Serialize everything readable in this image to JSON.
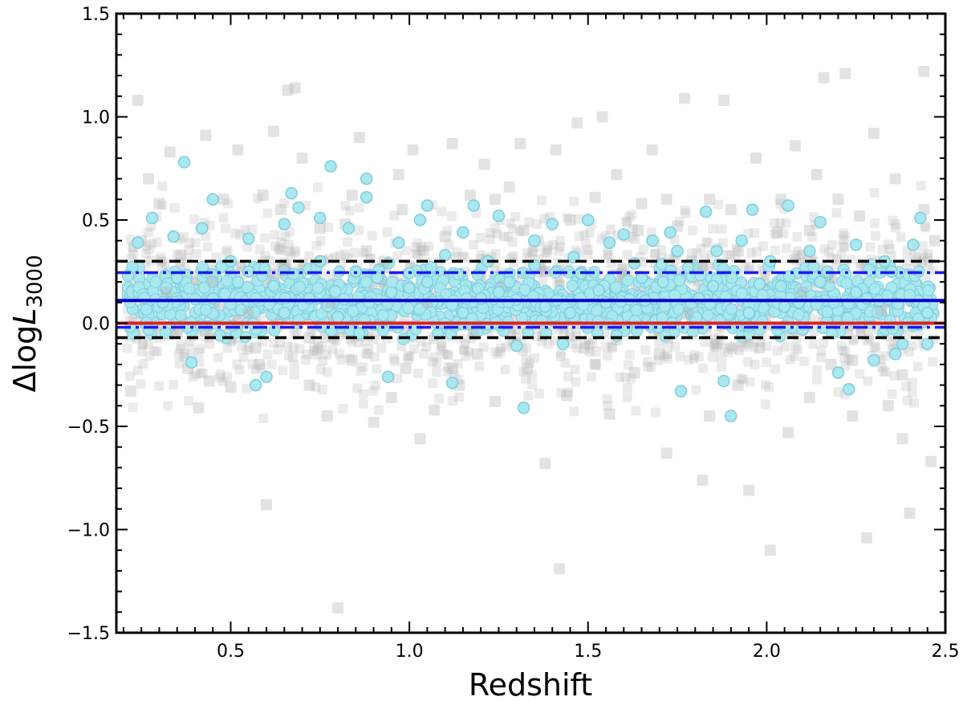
{
  "chart_data": {
    "type": "scatter",
    "xlabel": "Redshift",
    "ylabel_prefix": "Δlog",
    "ylabel_var": "L",
    "ylabel_sub": "3000",
    "xlim": [
      0.18,
      2.5
    ],
    "ylim": [
      -1.5,
      1.5
    ],
    "x_ticks": [
      0.5,
      1.0,
      1.5,
      2.0,
      2.5
    ],
    "x_tick_labels": [
      "0.5",
      "1.0",
      "1.5",
      "2.0",
      "2.5"
    ],
    "y_ticks": [
      -1.5,
      -1.0,
      -0.5,
      0.0,
      0.5,
      1.0,
      1.5
    ],
    "y_tick_labels": [
      "−1.5",
      "−1.0",
      "−0.5",
      "0.0",
      "0.5",
      "1.0",
      "1.5"
    ],
    "grid": false,
    "legend": "none",
    "series": [
      {
        "marker": "square",
        "color": "#b0b0b0",
        "opacity": 0.35,
        "points": [
          [
            0.22,
            -0.33
          ],
          [
            0.24,
            1.08
          ],
          [
            0.27,
            0.7
          ],
          [
            0.3,
            0.58
          ],
          [
            0.33,
            0.83
          ],
          [
            0.36,
            0.33
          ],
          [
            0.38,
            -0.22
          ],
          [
            0.41,
            -0.41
          ],
          [
            0.43,
            0.91
          ],
          [
            0.45,
            0.2
          ],
          [
            0.48,
            0.6
          ],
          [
            0.5,
            -0.31
          ],
          [
            0.52,
            0.84
          ],
          [
            0.55,
            0.05
          ],
          [
            0.57,
            -0.12
          ],
          [
            0.59,
            0.62
          ],
          [
            0.6,
            -0.88
          ],
          [
            0.62,
            0.93
          ],
          [
            0.65,
            0.28
          ],
          [
            0.66,
            1.13
          ],
          [
            0.68,
            1.14
          ],
          [
            0.7,
            0.8
          ],
          [
            0.72,
            -0.07
          ],
          [
            0.75,
            0.46
          ],
          [
            0.77,
            -0.45
          ],
          [
            0.8,
            -1.38
          ],
          [
            0.82,
            0.48
          ],
          [
            0.84,
            -0.18
          ],
          [
            0.86,
            0.9
          ],
          [
            0.88,
            0.35
          ],
          [
            0.9,
            -0.48
          ],
          [
            0.93,
            0.3
          ],
          [
            0.95,
            -0.36
          ],
          [
            0.97,
            0.72
          ],
          [
            0.99,
            -0.22
          ],
          [
            1.01,
            0.84
          ],
          [
            1.03,
            -0.56
          ],
          [
            1.05,
            0.1
          ],
          [
            1.07,
            -0.42
          ],
          [
            1.1,
            0.42
          ],
          [
            1.12,
            0.87
          ],
          [
            1.14,
            -0.3
          ],
          [
            1.17,
            0.62
          ],
          [
            1.19,
            -0.15
          ],
          [
            1.21,
            0.77
          ],
          [
            1.24,
            -0.38
          ],
          [
            1.26,
            0.18
          ],
          [
            1.28,
            0.66
          ],
          [
            1.31,
            0.87
          ],
          [
            1.33,
            -0.22
          ],
          [
            1.36,
            0.4
          ],
          [
            1.38,
            -0.68
          ],
          [
            1.41,
            0.84
          ],
          [
            1.42,
            -1.19
          ],
          [
            1.45,
            0.5
          ],
          [
            1.47,
            0.97
          ],
          [
            1.49,
            -0.12
          ],
          [
            1.52,
            0.61
          ],
          [
            1.54,
            1.0
          ],
          [
            1.56,
            -0.44
          ],
          [
            1.58,
            0.72
          ],
          [
            1.6,
            0.26
          ],
          [
            1.63,
            -0.24
          ],
          [
            1.65,
            0.58
          ],
          [
            1.68,
            0.84
          ],
          [
            1.7,
            -0.15
          ],
          [
            1.72,
            -0.63
          ],
          [
            1.75,
            0.47
          ],
          [
            1.77,
            1.09
          ],
          [
            1.79,
            0.3
          ],
          [
            1.82,
            -0.76
          ],
          [
            1.84,
            0.6
          ],
          [
            1.86,
            -0.1
          ],
          [
            1.88,
            1.08
          ],
          [
            1.9,
            0.55
          ],
          [
            1.92,
            -0.3
          ],
          [
            1.95,
            -0.81
          ],
          [
            1.97,
            0.8
          ],
          [
            1.99,
            0.2
          ],
          [
            2.01,
            -1.1
          ],
          [
            2.03,
            0.44
          ],
          [
            2.06,
            -0.53
          ],
          [
            2.08,
            0.86
          ],
          [
            2.1,
            0.15
          ],
          [
            2.12,
            -0.36
          ],
          [
            2.14,
            0.72
          ],
          [
            2.16,
            1.19
          ],
          [
            2.18,
            -0.2
          ],
          [
            2.2,
            0.6
          ],
          [
            2.22,
            1.21
          ],
          [
            2.24,
            -0.45
          ],
          [
            2.26,
            0.52
          ],
          [
            2.28,
            -1.04
          ],
          [
            2.3,
            0.92
          ],
          [
            2.32,
            0.06
          ],
          [
            2.34,
            -0.4
          ],
          [
            2.36,
            0.7
          ],
          [
            2.38,
            -0.56
          ],
          [
            2.4,
            -0.92
          ],
          [
            2.42,
            0.3
          ],
          [
            2.44,
            1.22
          ],
          [
            2.46,
            -0.67
          ],
          [
            2.47,
            0.4
          ],
          [
            0.25,
            0.4
          ],
          [
            0.35,
            -0.05
          ],
          [
            0.58,
            -0.2
          ],
          [
            0.78,
            0.1
          ],
          [
            0.98,
            0.55
          ],
          [
            1.18,
            -0.05
          ],
          [
            1.38,
            0.25
          ],
          [
            1.58,
            -0.08
          ],
          [
            1.78,
            0.05
          ],
          [
            1.98,
            -0.12
          ],
          [
            2.18,
            0.22
          ],
          [
            2.38,
            -0.25
          ],
          [
            0.44,
            -0.28
          ],
          [
            0.64,
            0.55
          ],
          [
            0.84,
            0.62
          ],
          [
            1.04,
            0.35
          ],
          [
            1.24,
            0.6
          ],
          [
            1.44,
            -0.35
          ],
          [
            1.64,
            0.45
          ],
          [
            1.84,
            -0.45
          ],
          [
            2.04,
            0.6
          ],
          [
            2.24,
            -0.18
          ],
          [
            2.44,
            0.55
          ],
          [
            0.32,
            0.15
          ],
          [
            0.52,
            0.0
          ],
          [
            0.72,
            -0.3
          ],
          [
            0.92,
            0.2
          ],
          [
            1.12,
            -0.22
          ],
          [
            1.32,
            0.45
          ],
          [
            1.52,
            -0.2
          ],
          [
            1.72,
            0.6
          ],
          [
            1.92,
            0.35
          ],
          [
            2.12,
            0.45
          ],
          [
            2.32,
            0.3
          ]
        ]
      },
      {
        "marker": "circle",
        "color": "#a8e8ee",
        "stroke": "#7fcde0",
        "points": [
          [
            0.24,
            0.39
          ],
          [
            0.28,
            0.51
          ],
          [
            0.31,
            0.1
          ],
          [
            0.34,
            0.42
          ],
          [
            0.37,
            0.78
          ],
          [
            0.39,
            -0.19
          ],
          [
            0.42,
            0.46
          ],
          [
            0.45,
            0.6
          ],
          [
            0.47,
            -0.06
          ],
          [
            0.5,
            0.3
          ],
          [
            0.52,
            0.2
          ],
          [
            0.55,
            0.41
          ],
          [
            0.57,
            -0.3
          ],
          [
            0.6,
            -0.26
          ],
          [
            0.62,
            0.18
          ],
          [
            0.65,
            0.48
          ],
          [
            0.67,
            0.63
          ],
          [
            0.69,
            0.56
          ],
          [
            0.72,
            0.12
          ],
          [
            0.75,
            0.51
          ],
          [
            0.78,
            0.76
          ],
          [
            0.8,
            0.03
          ],
          [
            0.83,
            0.46
          ],
          [
            0.86,
            -0.05
          ],
          [
            0.88,
            0.7
          ],
          [
            0.88,
            0.61
          ],
          [
            0.91,
            0.22
          ],
          [
            0.94,
            -0.26
          ],
          [
            0.97,
            0.39
          ],
          [
            1.0,
            0.17
          ],
          [
            1.03,
            0.5
          ],
          [
            1.05,
            0.57
          ],
          [
            1.08,
            -0.05
          ],
          [
            1.1,
            0.33
          ],
          [
            1.12,
            -0.29
          ],
          [
            1.15,
            0.44
          ],
          [
            1.18,
            0.57
          ],
          [
            1.2,
            0.12
          ],
          [
            1.22,
            0.3
          ],
          [
            1.25,
            0.52
          ],
          [
            1.28,
            0.2
          ],
          [
            1.3,
            -0.11
          ],
          [
            1.32,
            -0.41
          ],
          [
            1.35,
            0.4
          ],
          [
            1.38,
            0.08
          ],
          [
            1.4,
            0.48
          ],
          [
            1.43,
            -0.1
          ],
          [
            1.46,
            0.32
          ],
          [
            1.48,
            0.24
          ],
          [
            1.5,
            0.5
          ],
          [
            1.53,
            0.16
          ],
          [
            1.56,
            0.39
          ],
          [
            1.58,
            -0.06
          ],
          [
            1.6,
            0.43
          ],
          [
            1.63,
            0.29
          ],
          [
            1.66,
            0.11
          ],
          [
            1.68,
            0.4
          ],
          [
            1.71,
            0.2
          ],
          [
            1.73,
            0.44
          ],
          [
            1.76,
            -0.33
          ],
          [
            1.78,
            0.27
          ],
          [
            1.81,
            0.12
          ],
          [
            1.83,
            0.54
          ],
          [
            1.86,
            0.35
          ],
          [
            1.88,
            -0.28
          ],
          [
            1.9,
            -0.45
          ],
          [
            1.93,
            0.4
          ],
          [
            1.96,
            0.55
          ],
          [
            1.98,
            0.19
          ],
          [
            2.01,
            0.3
          ],
          [
            2.04,
            0.18
          ],
          [
            2.06,
            0.57
          ],
          [
            2.09,
            0.1
          ],
          [
            2.12,
            0.35
          ],
          [
            2.15,
            0.49
          ],
          [
            2.17,
            0.25
          ],
          [
            2.2,
            -0.24
          ],
          [
            2.23,
            -0.32
          ],
          [
            2.25,
            0.38
          ],
          [
            2.28,
            0.12
          ],
          [
            2.3,
            -0.18
          ],
          [
            2.33,
            0.3
          ],
          [
            2.36,
            -0.15
          ],
          [
            2.38,
            -0.1
          ],
          [
            2.41,
            0.38
          ],
          [
            2.43,
            0.51
          ],
          [
            2.45,
            -0.1
          ],
          [
            0.35,
            0.22
          ],
          [
            0.55,
            0.25
          ],
          [
            0.75,
            0.3
          ],
          [
            0.95,
            0.15
          ],
          [
            1.15,
            0.05
          ],
          [
            1.35,
            0.28
          ],
          [
            1.55,
            0.1
          ],
          [
            1.75,
            0.35
          ],
          [
            1.95,
            0.05
          ],
          [
            2.15,
            0.2
          ],
          [
            2.35,
            0.25
          ],
          [
            0.45,
            0.12
          ],
          [
            0.65,
            0.05
          ],
          [
            0.85,
            0.25
          ],
          [
            1.05,
            0.2
          ],
          [
            1.25,
            0.15
          ],
          [
            1.45,
            0.05
          ],
          [
            1.65,
            0.22
          ],
          [
            1.85,
            0.18
          ],
          [
            2.05,
            0.08
          ],
          [
            2.25,
            0.15
          ],
          [
            2.45,
            0.05
          ]
        ]
      }
    ],
    "reference_lines": [
      {
        "y": 0.3,
        "color": "#000000",
        "style": "dashed"
      },
      {
        "y": 0.245,
        "color": "#1a1aff",
        "style": "dashdot"
      },
      {
        "y": 0.11,
        "color": "#0000c8",
        "style": "solid"
      },
      {
        "y": 0.0,
        "color": "#e02020",
        "style": "solid"
      },
      {
        "y": -0.02,
        "color": "#1a1aff",
        "style": "dashdot"
      },
      {
        "y": -0.07,
        "color": "#000000",
        "style": "dashed"
      }
    ]
  }
}
